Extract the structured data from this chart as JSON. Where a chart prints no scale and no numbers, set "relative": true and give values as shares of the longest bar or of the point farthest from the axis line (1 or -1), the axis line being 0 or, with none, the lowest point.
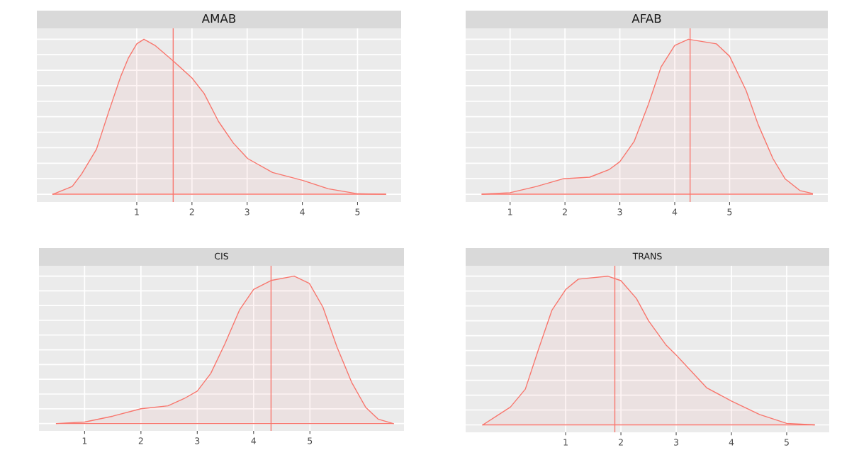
{
  "chart_data": [
    {
      "type": "area",
      "title": "AMAB",
      "relative": true,
      "grid": true,
      "xlim": [
        -0.81,
        5.79
      ],
      "xticks": [
        1,
        2,
        3,
        4,
        5
      ],
      "x": [
        -0.52,
        -0.17,
        0.0,
        0.27,
        0.49,
        0.71,
        0.85,
        1.0,
        1.13,
        1.33,
        1.66,
        2.0,
        2.22,
        2.48,
        2.75,
        3.01,
        3.46,
        4.0,
        4.47,
        5.0,
        5.51
      ],
      "series": [
        {
          "color": "#f8766d",
          "values": [
            0,
            0.05,
            0.13,
            0.29,
            0.53,
            0.76,
            0.88,
            0.97,
            1.0,
            0.96,
            0.86,
            0.75,
            0.65,
            0.47,
            0.33,
            0.23,
            0.14,
            0.09,
            0.035,
            0.003,
            0
          ]
        }
      ],
      "ref_lines": [
        {
          "axis": "x",
          "value": 1.66,
          "color": "#f8766d"
        }
      ]
    },
    {
      "type": "area",
      "title": "AFAB",
      "relative": true,
      "grid": true,
      "xlim": [
        0.19,
        6.79
      ],
      "xticks": [
        1,
        2,
        3,
        4,
        5
      ],
      "x": [
        0.49,
        1.0,
        1.48,
        1.97,
        2.45,
        2.81,
        3.0,
        3.26,
        3.52,
        3.75,
        4.0,
        4.25,
        4.76,
        5.0,
        5.3,
        5.52,
        5.79,
        6.01,
        6.28,
        6.51
      ],
      "series": [
        {
          "color": "#f8766d",
          "values": [
            0,
            0.01,
            0.05,
            0.1,
            0.11,
            0.16,
            0.21,
            0.34,
            0.58,
            0.82,
            0.96,
            1.0,
            0.97,
            0.89,
            0.67,
            0.45,
            0.23,
            0.1,
            0.024,
            0.005
          ]
        }
      ],
      "ref_lines": [
        {
          "axis": "x",
          "value": 4.28,
          "color": "#f8766d"
        }
      ]
    },
    {
      "type": "area",
      "title": "CIS",
      "relative": true,
      "grid": true,
      "xlim": [
        0.19,
        6.67
      ],
      "xticks": [
        1,
        2,
        3,
        4,
        5
      ],
      "x": [
        0.5,
        1.0,
        1.5,
        2.0,
        2.48,
        2.77,
        3.0,
        3.24,
        3.49,
        3.75,
        4.0,
        4.31,
        4.72,
        4.99,
        5.23,
        5.48,
        5.74,
        5.99,
        6.21,
        6.48
      ],
      "series": [
        {
          "color": "#f8766d",
          "values": [
            0,
            0.01,
            0.05,
            0.1,
            0.12,
            0.17,
            0.22,
            0.34,
            0.54,
            0.77,
            0.91,
            0.97,
            1.0,
            0.95,
            0.79,
            0.52,
            0.28,
            0.11,
            0.03,
            0
          ]
        }
      ],
      "ref_lines": [
        {
          "axis": "x",
          "value": 4.31,
          "color": "#f8766d"
        }
      ]
    },
    {
      "type": "area",
      "title": "TRANS",
      "relative": true,
      "grid": true,
      "xlim": [
        -0.81,
        5.77
      ],
      "xticks": [
        1,
        2,
        3,
        4,
        5
      ],
      "x": [
        -0.5,
        0.0,
        0.27,
        0.51,
        0.75,
        1.0,
        1.23,
        1.76,
        2.0,
        2.28,
        2.5,
        2.81,
        3.0,
        3.55,
        4.0,
        4.51,
        5.0,
        5.5
      ],
      "series": [
        {
          "color": "#f8766d",
          "values": [
            0,
            0.12,
            0.24,
            0.51,
            0.77,
            0.91,
            0.98,
            1.0,
            0.97,
            0.85,
            0.7,
            0.54,
            0.47,
            0.25,
            0.16,
            0.07,
            0.01,
            0
          ]
        }
      ],
      "ref_lines": [
        {
          "axis": "x",
          "value": 1.89,
          "color": "#f8766d"
        }
      ]
    }
  ]
}
